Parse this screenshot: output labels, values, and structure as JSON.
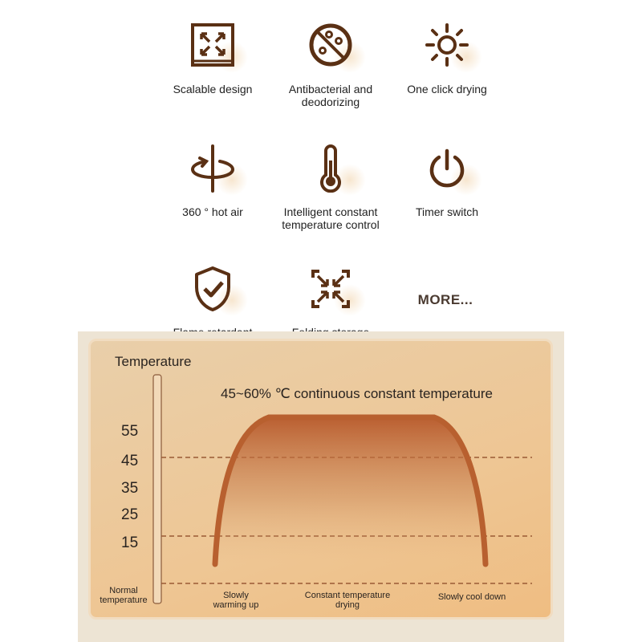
{
  "features": [
    {
      "label": "Scalable design",
      "icon": "expand-icon"
    },
    {
      "label": "Antibacterial and deodorizing",
      "icon": "no-bacteria-icon"
    },
    {
      "label": "One click drying",
      "icon": "sun-icon"
    },
    {
      "label": "360 ° hot air",
      "icon": "rotate-air-icon"
    },
    {
      "label": "Intelligent constant temperature control",
      "icon": "thermometer-icon"
    },
    {
      "label": "Timer switch",
      "icon": "power-icon"
    },
    {
      "label": "Flame retardant",
      "icon": "shield-check-icon"
    },
    {
      "label": "Folding storage",
      "icon": "collapse-icon"
    }
  ],
  "more_label": "MORE...",
  "diagram": {
    "axis_title": "Temperature",
    "headline": "45~60% ℃ continuous constant temperature",
    "ticks": [
      "55",
      "45",
      "35",
      "25",
      "15"
    ],
    "baseline_label": "Normal temperature",
    "phases": [
      "Slowly warming up",
      "Constant temperature drying",
      "Slowly cool down"
    ],
    "colors": {
      "curve": "#b8602f",
      "icon": "#5a3014",
      "card": "#ecc796"
    }
  }
}
